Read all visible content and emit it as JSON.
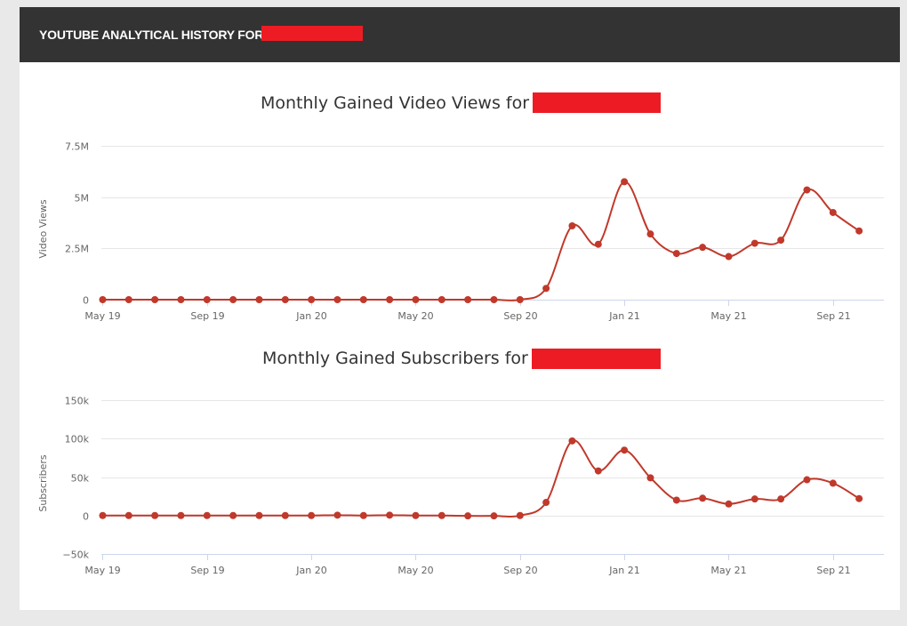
{
  "header": {
    "title": "YOUTUBE ANALYTICAL HISTORY FOR"
  },
  "colors": {
    "header_bg": "#333333",
    "series": "#c0392b",
    "redaction": "#ed1c24"
  },
  "chart_data": [
    {
      "type": "line",
      "title": "Monthly Gained Video Views for",
      "ylabel": "Video Views",
      "ylim": [
        0,
        7500000
      ],
      "yticks": [
        0,
        2500000,
        5000000,
        7500000
      ],
      "ytick_labels": [
        "0",
        "2.5M",
        "5M",
        "7.5M"
      ],
      "xtick_labels": [
        "May 19",
        "Sep 19",
        "Jan 20",
        "May 20",
        "Sep 20",
        "Jan 21",
        "May 21",
        "Sep 21"
      ],
      "grid": true,
      "x": [
        "2019-05",
        "2019-06",
        "2019-07",
        "2019-08",
        "2019-09",
        "2019-10",
        "2019-11",
        "2019-12",
        "2020-01",
        "2020-02",
        "2020-03",
        "2020-04",
        "2020-05",
        "2020-06",
        "2020-07",
        "2020-08",
        "2020-09",
        "2020-10",
        "2020-11",
        "2020-12",
        "2021-01",
        "2021-02",
        "2021-03",
        "2021-04",
        "2021-05",
        "2021-06",
        "2021-07",
        "2021-08",
        "2021-09",
        "2021-10"
      ],
      "series": [
        {
          "values": [
            0,
            0,
            0,
            0,
            0,
            0,
            0,
            0,
            0,
            0,
            0,
            0,
            0,
            0,
            0,
            0,
            0,
            550000,
            3600000,
            2700000,
            5750000,
            3200000,
            2250000,
            2550000,
            2100000,
            2750000,
            2900000,
            5350000,
            4250000,
            3350000
          ]
        }
      ]
    },
    {
      "type": "line",
      "title": "Monthly Gained Subscribers for",
      "ylabel": "Subscribers",
      "ylim": [
        -50000,
        150000
      ],
      "yticks": [
        -50000,
        0,
        50000,
        100000,
        150000
      ],
      "ytick_labels": [
        "−50k",
        "0",
        "50k",
        "100k",
        "150k"
      ],
      "xtick_labels": [
        "May 19",
        "Sep 19",
        "Jan 20",
        "May 20",
        "Sep 20",
        "Jan 21",
        "May 21",
        "Sep 21"
      ],
      "grid": true,
      "x": [
        "2019-05",
        "2019-06",
        "2019-07",
        "2019-08",
        "2019-09",
        "2019-10",
        "2019-11",
        "2019-12",
        "2020-01",
        "2020-02",
        "2020-03",
        "2020-04",
        "2020-05",
        "2020-06",
        "2020-07",
        "2020-08",
        "2020-09",
        "2020-10",
        "2020-11",
        "2020-12",
        "2021-01",
        "2021-02",
        "2021-03",
        "2021-04",
        "2021-05",
        "2021-06",
        "2021-07",
        "2021-08",
        "2021-09",
        "2021-10"
      ],
      "series": [
        {
          "values": [
            0,
            0,
            0,
            0,
            0,
            0,
            0,
            0,
            0,
            500,
            0,
            500,
            0,
            0,
            -500,
            -500,
            0,
            17000,
            97000,
            58000,
            85000,
            49000,
            20000,
            22500,
            15000,
            21500,
            21500,
            46500,
            42000,
            22000
          ]
        }
      ]
    }
  ]
}
